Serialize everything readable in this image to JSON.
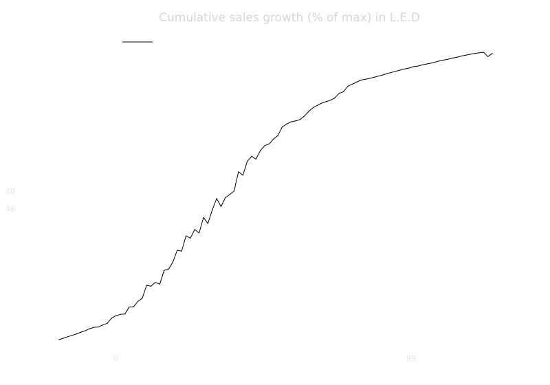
{
  "chart_data": {
    "type": "line",
    "title": "Cumulative sales growth (% of max) in L.E.D",
    "xlabel": "",
    "ylabel": "",
    "legend": {
      "placement": "top-left",
      "entries": []
    },
    "grid": false,
    "xlim": [
      0,
      99
    ],
    "ylim": [
      0,
      100
    ],
    "x_ticks": [
      0,
      99
    ],
    "y_ticks": [
      40,
      46
    ],
    "series": [
      {
        "color": "#000000",
        "x": [
          0,
          1,
          2,
          3,
          4,
          5,
          6,
          7,
          8,
          9,
          10,
          11,
          12,
          13,
          14,
          15,
          16,
          17,
          18,
          19,
          20,
          21,
          22,
          23,
          24,
          25,
          26,
          27,
          28,
          29,
          30,
          31,
          32,
          33,
          34,
          35,
          36,
          37,
          38,
          39,
          40,
          41,
          42,
          43,
          44,
          45,
          46,
          47,
          48,
          49,
          50,
          51,
          52,
          53,
          54,
          55,
          56,
          57,
          58,
          59,
          60,
          61,
          62,
          63,
          64,
          65,
          66,
          67,
          68,
          69,
          70,
          71,
          72,
          73,
          74,
          75,
          76,
          77,
          78,
          79,
          80,
          81,
          82,
          83,
          84,
          85,
          86,
          87,
          88,
          89,
          90,
          91,
          92,
          93,
          94,
          95,
          96,
          97,
          98,
          99
        ],
        "y": [
          0.0,
          0.5,
          1.0,
          1.5,
          2.0,
          2.6,
          3.1,
          3.8,
          4.3,
          4.4,
          5.1,
          5.7,
          7.5,
          8.3,
          8.8,
          8.9,
          11.3,
          11.4,
          13.3,
          14.4,
          18.9,
          18.6,
          19.9,
          19.3,
          24.1,
          24.5,
          27.0,
          31.1,
          30.8,
          36.1,
          35.3,
          38.3,
          37.1,
          42.5,
          40.4,
          45.1,
          49.1,
          46.3,
          49.4,
          50.5,
          51.7,
          58.4,
          57.2,
          62.0,
          63.8,
          62.8,
          65.8,
          67.5,
          68.1,
          69.8,
          71.0,
          74.0,
          75.0,
          75.8,
          76.1,
          76.5,
          77.7,
          79.3,
          80.7,
          81.5,
          82.3,
          82.8,
          83.3,
          84.1,
          85.7,
          86.3,
          88.2,
          88.9,
          89.6,
          90.3,
          90.6,
          90.9,
          91.3,
          91.7,
          92.1,
          92.6,
          93.0,
          93.4,
          93.8,
          94.2,
          94.5,
          95.0,
          95.2,
          95.6,
          95.9,
          96.2,
          96.6,
          97.0,
          97.3,
          97.6,
          98.0,
          98.3,
          98.7,
          99.0,
          99.3,
          99.6,
          99.8,
          100.0,
          98.5,
          99.6
        ]
      }
    ]
  }
}
